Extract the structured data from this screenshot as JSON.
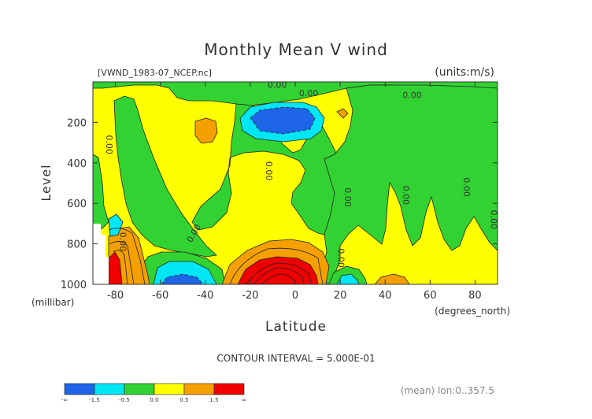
{
  "chart_data": {
    "type": "contour",
    "title": "Monthly Mean V wind",
    "file_label": "[VWND_1983-07_NCEP.nc]",
    "units_label": "(units:m/s)",
    "xlabel": "Latitude",
    "x_units": "(degrees_north)",
    "ylabel": "Level",
    "y_units": "(millibar)",
    "xlim": [
      -90,
      90
    ],
    "ylim": [
      1000,
      0
    ],
    "x_ticks": [
      -80,
      -60,
      -40,
      -20,
      0,
      20,
      40,
      60,
      80
    ],
    "y_ticks": [
      200,
      400,
      600,
      800,
      1000
    ],
    "contour_interval_text": "CONTOUR INTERVAL = 5.000E-01",
    "footer_text": "(mean) lon:0..357.5",
    "contour_labels": [
      {
        "text": "0.00",
        "x": -8,
        "y": 30
      },
      {
        "text": "0.00",
        "x": 6,
        "y": 70
      },
      {
        "text": "0.00",
        "x": 52,
        "y": 80
      },
      {
        "text": "0.00",
        "x": -84,
        "y": 310
      },
      {
        "text": "0.00",
        "x": -13,
        "y": 440
      },
      {
        "text": "0.00",
        "x": -44,
        "y": 755
      },
      {
        "text": "0.00",
        "x": -78,
        "y": 790
      },
      {
        "text": "0.00",
        "x": 22,
        "y": 570
      },
      {
        "text": "0.00",
        "x": 48,
        "y": 560
      },
      {
        "text": "0.00",
        "x": 75,
        "y": 520
      },
      {
        "text": "0.00",
        "x": 87,
        "y": 680
      },
      {
        "text": "0.00",
        "x": 19,
        "y": 870
      }
    ],
    "colorbar": {
      "colors": [
        "#1e64e6",
        "#00e6f5",
        "#32d232",
        "#ffff00",
        "#f5a000",
        "#f00000"
      ],
      "labels": [
        "-∞",
        "-1.5",
        "-0.5",
        "0.0",
        "0.5",
        "1.5",
        "∞"
      ]
    }
  }
}
